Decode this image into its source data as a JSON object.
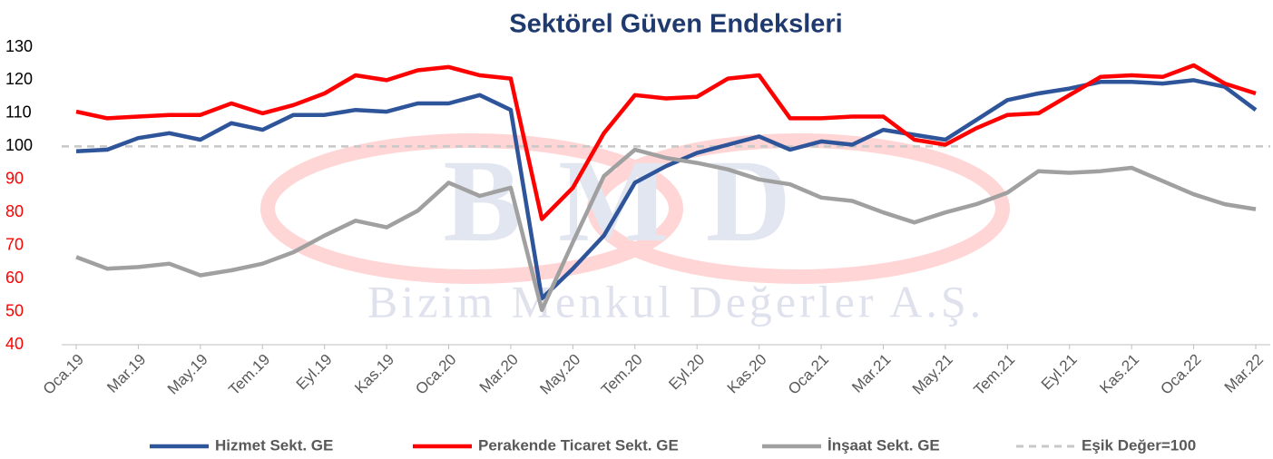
{
  "chart_data": {
    "type": "line",
    "title": "Sektörel Güven Endeksleri",
    "watermark": {
      "logo": "BMD",
      "text": "Bizim Menkul Değerler A.Ş."
    },
    "categories": [
      "Oca.19",
      null,
      "Mar.19",
      null,
      "May.19",
      null,
      "Tem.19",
      null,
      "Eyl.19",
      null,
      "Kas.19",
      null,
      "Oca.20",
      null,
      "Mar.20",
      null,
      "May.20",
      null,
      "Tem.20",
      null,
      "Eyl.20",
      null,
      "Kas.20",
      null,
      "Oca.21",
      null,
      "Mar.21",
      null,
      "May.21",
      null,
      "Tem.21",
      null,
      "Eyl.21",
      null,
      "Kas.21",
      null,
      "Oca.22",
      null,
      "Mar.22"
    ],
    "series": [
      {
        "name": "Hizmet Sekt. GE",
        "color": "#2e549a",
        "values": [
          98.5,
          99,
          102.5,
          104,
          102,
          107,
          105,
          109.5,
          109.5,
          111,
          110.5,
          113,
          113,
          115.5,
          111,
          54,
          63,
          73,
          89,
          94,
          98,
          100.5,
          103,
          99,
          101.5,
          100.5,
          105,
          103.5,
          102,
          108,
          114,
          116,
          117.5,
          119.5,
          119.5,
          119,
          120,
          118,
          111
        ]
      },
      {
        "name": "Perakende Ticaret Sekt. GE",
        "color": "#ff0000",
        "values": [
          110.5,
          108.5,
          109,
          109.5,
          109.5,
          113,
          110,
          112.5,
          116,
          121.5,
          120,
          123,
          124,
          121.5,
          120.5,
          78,
          87.5,
          104,
          115.5,
          114.5,
          115,
          120.5,
          121.5,
          108.5,
          108.5,
          109,
          109,
          102,
          100.5,
          105.5,
          109.5,
          110,
          115.5,
          121,
          121.5,
          121,
          124.5,
          119,
          116
        ]
      },
      {
        "name": "İnşaat Sekt. GE",
        "color": "#a0a0a0",
        "values": [
          66.5,
          63,
          63.5,
          64.5,
          61,
          62.5,
          64.5,
          68,
          73,
          77.5,
          75.5,
          80.5,
          89,
          85,
          87.5,
          50.5,
          71,
          91,
          99,
          96.5,
          95,
          93,
          90,
          88.5,
          84.5,
          83.5,
          80,
          77,
          80,
          82.5,
          86,
          92.5,
          92,
          92.5,
          93.5,
          89.5,
          85.5,
          82.5,
          81
        ]
      }
    ],
    "reference_line": {
      "name": "Eşik Değer=100",
      "value": 100,
      "color": "#c8c8c8",
      "dashed": true
    },
    "ylim": [
      40,
      130
    ],
    "yticks": [
      40,
      50,
      60,
      70,
      80,
      90,
      100,
      110,
      120,
      130
    ],
    "ytick_colors": [
      "#ff0000",
      "#ff0000",
      "#ff0000",
      "#ff0000",
      "#ff0000",
      "#ff0000",
      "#000000",
      "#000000",
      "#000000",
      "#000000"
    ],
    "grid": false,
    "legend": "bottom"
  }
}
